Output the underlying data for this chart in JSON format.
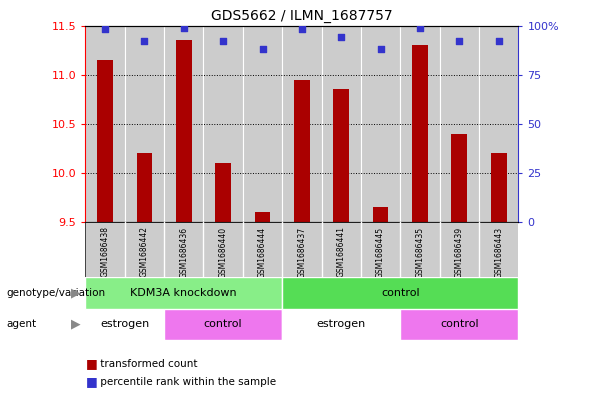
{
  "title": "GDS5662 / ILMN_1687757",
  "samples": [
    "GSM1686438",
    "GSM1686442",
    "GSM1686436",
    "GSM1686440",
    "GSM1686444",
    "GSM1686437",
    "GSM1686441",
    "GSM1686445",
    "GSM1686435",
    "GSM1686439",
    "GSM1686443"
  ],
  "transformed_counts": [
    11.15,
    10.2,
    11.35,
    10.1,
    9.6,
    10.95,
    10.85,
    9.65,
    11.3,
    10.4,
    10.2
  ],
  "percentile_ranks": [
    98,
    92,
    99,
    92,
    88,
    98,
    94,
    88,
    99,
    92,
    92
  ],
  "ylim_left": [
    9.5,
    11.5
  ],
  "ylim_right": [
    0,
    100
  ],
  "yticks_left": [
    9.5,
    10.0,
    10.5,
    11.0,
    11.5
  ],
  "yticks_right": [
    0,
    25,
    50,
    75,
    100
  ],
  "ytick_labels_right": [
    "0",
    "25",
    "50",
    "75",
    "100%"
  ],
  "bar_color": "#AA0000",
  "dot_color": "#3333CC",
  "genotype_groups": [
    {
      "label": "KDM3A knockdown",
      "start": 0,
      "end": 5,
      "color": "#88EE88"
    },
    {
      "label": "control",
      "start": 5,
      "end": 11,
      "color": "#55DD55"
    }
  ],
  "agent_groups": [
    {
      "label": "estrogen",
      "start": 0,
      "end": 2,
      "color": "#FFFFFF"
    },
    {
      "label": "control",
      "start": 2,
      "end": 5,
      "color": "#EE77EE"
    },
    {
      "label": "estrogen",
      "start": 5,
      "end": 8,
      "color": "#FFFFFF"
    },
    {
      "label": "control",
      "start": 8,
      "end": 11,
      "color": "#EE77EE"
    }
  ],
  "sample_bg_color": "#CCCCCC",
  "plot_bg_color": "#FFFFFF",
  "bar_width": 0.4,
  "main_axes": [
    0.145,
    0.435,
    0.735,
    0.5
  ],
  "sample_axes": [
    0.145,
    0.295,
    0.735,
    0.14
  ],
  "geno_axes": [
    0.145,
    0.215,
    0.735,
    0.08
  ],
  "agent_axes": [
    0.145,
    0.135,
    0.735,
    0.08
  ]
}
